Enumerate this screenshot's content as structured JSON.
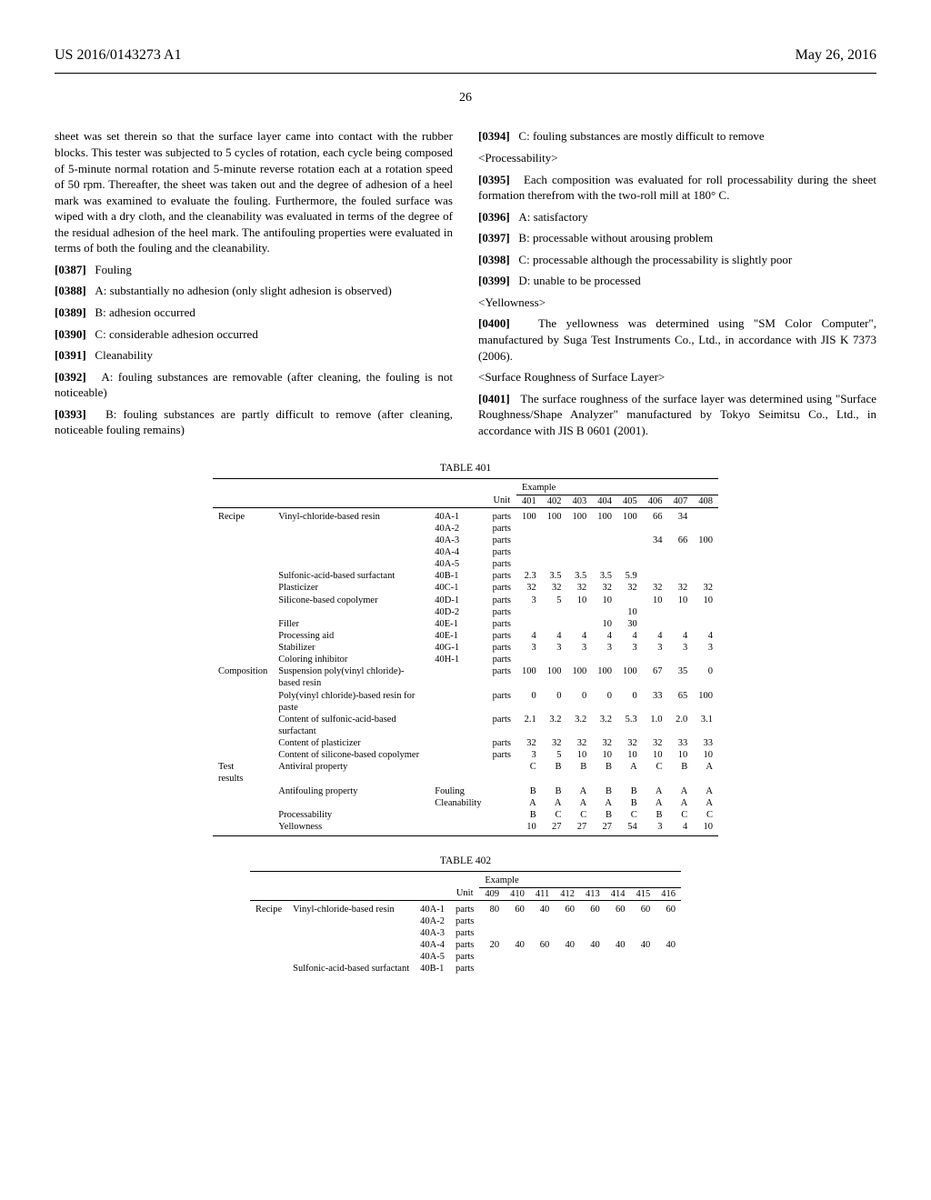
{
  "header": {
    "left": "US 2016/0143273 A1",
    "right": "May 26, 2016",
    "page": "26"
  },
  "left_col": {
    "p_lead": "sheet was set therein so that the surface layer came into contact with the rubber blocks. This tester was subjected to 5 cycles of rotation, each cycle being composed of 5-minute normal rotation and 5-minute reverse rotation each at a rotation speed of 50 rpm. Thereafter, the sheet was taken out and the degree of adhesion of a heel mark was examined to evaluate the fouling. Furthermore, the fouled surface was wiped with a dry cloth, and the cleanability was evaluated in terms of the degree of the residual adhesion of the heel mark. The antifouling properties were evaluated in terms of both the fouling and the cleanability.",
    "p0387": "Fouling",
    "p0388": "A: substantially no adhesion (only slight adhesion is observed)",
    "p0389": "B: adhesion occurred",
    "p0390": "C: considerable adhesion occurred",
    "p0391": "Cleanability",
    "p0392": "A: fouling substances are removable (after cleaning, the fouling is not noticeable)",
    "p0393": "B: fouling substances are partly difficult to remove (after cleaning, noticeable fouling remains)",
    "p0394": "C: fouling substances are mostly difficult to remove"
  },
  "right_col": {
    "h_process": "<Processability>",
    "p0395": "Each composition was evaluated for roll processability during the sheet formation therefrom with the two-roll mill at 180° C.",
    "p0396": "A: satisfactory",
    "p0397": "B: processable without arousing problem",
    "p0398": "C: processable although the processability is slightly poor",
    "p0399": "D: unable to be processed",
    "h_yellow": "<Yellowness>",
    "p0400": "The yellowness was determined using \"SM Color Computer\", manufactured by Suga Test Instruments Co., Ltd., in accordance with JIS K 7373 (2006).",
    "h_rough": "<Surface Roughness of Surface Layer>",
    "p0401": "The surface roughness of the surface layer was determined using \"Surface Roughness/Shape Analyzer\" manufactured by Tokyo Seimitsu Co., Ltd., in accordance with JIS B 0601 (2001)."
  },
  "table401": {
    "title": "TABLE 401",
    "example_header": "Example",
    "unit_label": "Unit",
    "cols": [
      "401",
      "402",
      "403",
      "404",
      "405",
      "406",
      "407",
      "408"
    ],
    "groups": {
      "recipe": "Recipe",
      "composition": "Composition",
      "test": "Test\nresults"
    },
    "rows": [
      {
        "g": "recipe",
        "label": "Vinyl-chloride-based resin",
        "sub": "40A-1",
        "unit": "parts",
        "v": [
          "100",
          "100",
          "100",
          "100",
          "100",
          "66",
          "34",
          ""
        ]
      },
      {
        "g": "",
        "label": "",
        "sub": "40A-2",
        "unit": "parts",
        "v": [
          "",
          "",
          "",
          "",
          "",
          "",
          "",
          ""
        ]
      },
      {
        "g": "",
        "label": "",
        "sub": "40A-3",
        "unit": "parts",
        "v": [
          "",
          "",
          "",
          "",
          "",
          "34",
          "66",
          "100"
        ]
      },
      {
        "g": "",
        "label": "",
        "sub": "40A-4",
        "unit": "parts",
        "v": [
          "",
          "",
          "",
          "",
          "",
          "",
          "",
          ""
        ]
      },
      {
        "g": "",
        "label": "",
        "sub": "40A-5",
        "unit": "parts",
        "v": [
          "",
          "",
          "",
          "",
          "",
          "",
          "",
          ""
        ]
      },
      {
        "g": "",
        "label": "Sulfonic-acid-based surfactant",
        "sub": "40B-1",
        "unit": "parts",
        "v": [
          "2.3",
          "3.5",
          "3.5",
          "3.5",
          "5.9",
          "",
          "",
          ""
        ]
      },
      {
        "g": "",
        "label": "Plasticizer",
        "sub": "40C-1",
        "unit": "parts",
        "v": [
          "32",
          "32",
          "32",
          "32",
          "32",
          "32",
          "32",
          "32"
        ]
      },
      {
        "g": "",
        "label": "Silicone-based copolymer",
        "sub": "40D-1",
        "unit": "parts",
        "v": [
          "3",
          "5",
          "10",
          "10",
          "",
          "10",
          "10",
          "10"
        ]
      },
      {
        "g": "",
        "label": "",
        "sub": "40D-2",
        "unit": "parts",
        "v": [
          "",
          "",
          "",
          "",
          "10",
          "",
          "",
          ""
        ]
      },
      {
        "g": "",
        "label": "Filler",
        "sub": "40E-1",
        "unit": "parts",
        "v": [
          "",
          "",
          "",
          "10",
          "30",
          "",
          "",
          ""
        ]
      },
      {
        "g": "",
        "label": "Processing aid",
        "sub": "40E-1",
        "unit": "parts",
        "v": [
          "4",
          "4",
          "4",
          "4",
          "4",
          "4",
          "4",
          "4"
        ]
      },
      {
        "g": "",
        "label": "Stabilizer",
        "sub": "40G-1",
        "unit": "parts",
        "v": [
          "3",
          "3",
          "3",
          "3",
          "3",
          "3",
          "3",
          "3"
        ]
      },
      {
        "g": "",
        "label": "Coloring inhibitor",
        "sub": "40H-1",
        "unit": "parts",
        "v": [
          "",
          "",
          "",
          "",
          "",
          "",
          "",
          ""
        ]
      },
      {
        "g": "composition",
        "label": "Suspension poly(vinyl chloride)-based resin",
        "sub": "",
        "unit": "parts",
        "v": [
          "100",
          "100",
          "100",
          "100",
          "100",
          "67",
          "35",
          "0"
        ]
      },
      {
        "g": "",
        "label": "Poly(vinyl chloride)-based resin for paste",
        "sub": "",
        "unit": "parts",
        "v": [
          "0",
          "0",
          "0",
          "0",
          "0",
          "33",
          "65",
          "100"
        ]
      },
      {
        "g": "",
        "label": "Content of sulfonic-acid-based surfactant",
        "sub": "",
        "unit": "parts",
        "v": [
          "2.1",
          "3.2",
          "3.2",
          "3.2",
          "5.3",
          "1.0",
          "2.0",
          "3.1"
        ]
      },
      {
        "g": "",
        "label": "Content of plasticizer",
        "sub": "",
        "unit": "parts",
        "v": [
          "32",
          "32",
          "32",
          "32",
          "32",
          "32",
          "33",
          "33"
        ]
      },
      {
        "g": "",
        "label": "Content of silicone-based copolymer",
        "sub": "",
        "unit": "parts",
        "v": [
          "3",
          "5",
          "10",
          "10",
          "10",
          "10",
          "10",
          "10"
        ]
      },
      {
        "g": "test",
        "label": "Antiviral property",
        "sub": "",
        "unit": "",
        "v": [
          "C",
          "B",
          "B",
          "B",
          "A",
          "C",
          "B",
          "A"
        ]
      },
      {
        "g": "",
        "label": "Antifouling property",
        "sub": "Fouling",
        "unit": "",
        "v": [
          "B",
          "B",
          "A",
          "B",
          "B",
          "A",
          "A",
          "A"
        ]
      },
      {
        "g": "",
        "label": "",
        "sub": "Cleanability",
        "unit": "",
        "v": [
          "A",
          "A",
          "A",
          "A",
          "B",
          "A",
          "A",
          "A"
        ]
      },
      {
        "g": "",
        "label": "Processability",
        "sub": "",
        "unit": "",
        "v": [
          "B",
          "C",
          "C",
          "B",
          "C",
          "B",
          "C",
          "C"
        ]
      },
      {
        "g": "",
        "label": "Yellowness",
        "sub": "",
        "unit": "",
        "v": [
          "10",
          "27",
          "27",
          "27",
          "54",
          "3",
          "4",
          "10"
        ]
      }
    ]
  },
  "table402": {
    "title": "TABLE 402",
    "example_header": "Example",
    "unit_label": "Unit",
    "cols": [
      "409",
      "410",
      "411",
      "412",
      "413",
      "414",
      "415",
      "416"
    ],
    "groups": {
      "recipe": "Recipe"
    },
    "rows": [
      {
        "g": "recipe",
        "label": "Vinyl-chloride-based resin",
        "sub": "40A-1",
        "unit": "parts",
        "v": [
          "80",
          "60",
          "40",
          "60",
          "60",
          "60",
          "60",
          "60"
        ]
      },
      {
        "g": "",
        "label": "",
        "sub": "40A-2",
        "unit": "parts",
        "v": [
          "",
          "",
          "",
          "",
          "",
          "",
          "",
          ""
        ]
      },
      {
        "g": "",
        "label": "",
        "sub": "40A-3",
        "unit": "parts",
        "v": [
          "",
          "",
          "",
          "",
          "",
          "",
          "",
          ""
        ]
      },
      {
        "g": "",
        "label": "",
        "sub": "40A-4",
        "unit": "parts",
        "v": [
          "20",
          "40",
          "60",
          "40",
          "40",
          "40",
          "40",
          "40"
        ]
      },
      {
        "g": "",
        "label": "",
        "sub": "40A-5",
        "unit": "parts",
        "v": [
          "",
          "",
          "",
          "",
          "",
          "",
          "",
          ""
        ]
      },
      {
        "g": "",
        "label": "Sulfonic-acid-based surfactant",
        "sub": "40B-1",
        "unit": "parts",
        "v": [
          "",
          "",
          "",
          "",
          "",
          "",
          "",
          ""
        ]
      }
    ]
  },
  "labels": {
    "n0387": "[0387]",
    "n0388": "[0388]",
    "n0389": "[0389]",
    "n0390": "[0390]",
    "n0391": "[0391]",
    "n0392": "[0392]",
    "n0393": "[0393]",
    "n0394": "[0394]",
    "n0395": "[0395]",
    "n0396": "[0396]",
    "n0397": "[0397]",
    "n0398": "[0398]",
    "n0399": "[0399]",
    "n0400": "[0400]",
    "n0401": "[0401]"
  }
}
